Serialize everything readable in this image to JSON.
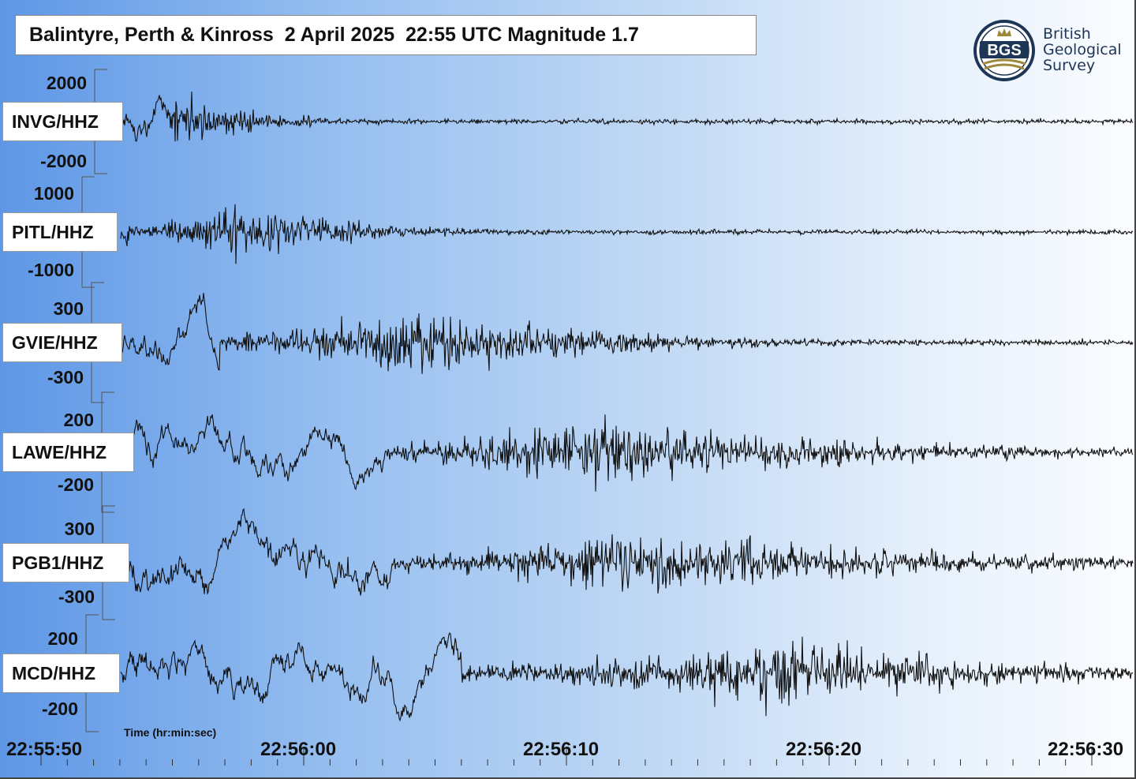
{
  "title": "Balintyre, Perth & Kinross  2 April 2025  22:55 UTC Magnitude 1.7",
  "logo": {
    "initials": "BGS",
    "lines": [
      "British",
      "Geological",
      "Survey"
    ],
    "icon": "bgs-crown-emblem-icon"
  },
  "colors": {
    "trace": "#111111",
    "text": "#111111",
    "logo_blue": "#1d3557",
    "logo_gold": "#9c8a3a"
  },
  "chart_data": {
    "type": "line",
    "xlabel": "Time (hr:min:sec)",
    "x_ticks": [
      "22:55:50",
      "22:56:00",
      "22:56:10",
      "22:56:20",
      "22:56:30"
    ],
    "x_range": [
      "22:55:50",
      "22:56:30"
    ],
    "grid": false,
    "series": [
      {
        "name": "INVG/HHZ",
        "scale_max": "2000",
        "scale_min": "-2000",
        "onset_s": 4.9,
        "peak_s": 5.1,
        "decay_s": 3.0,
        "noise": 0.1,
        "burst_amp": 0.95
      },
      {
        "name": "PITL/HHZ",
        "scale_max": "1000",
        "scale_min": "-1000",
        "onset_s": 3.3,
        "peak_s": 7.6,
        "decay_s": 4.0,
        "noise": 0.03,
        "burst_amp": 0.85
      },
      {
        "name": "GVIE/HHZ",
        "scale_max": "300",
        "scale_min": "-300",
        "onset_s": 6.8,
        "peak_s": 13.8,
        "decay_s": 7.0,
        "noise": 0.04,
        "burst_amp": 0.95
      },
      {
        "name": "LAWE/HHZ",
        "scale_max": "200",
        "scale_min": "-200",
        "onset_s": 13.3,
        "peak_s": 20.2,
        "decay_s": 10.0,
        "noise": 0.03,
        "burst_amp": 0.95
      },
      {
        "name": "PGB1/HHZ",
        "scale_max": "300",
        "scale_min": "-300",
        "onset_s": 13.4,
        "peak_s": 22.0,
        "decay_s": 12.0,
        "noise": 0.22,
        "burst_amp": 0.9
      },
      {
        "name": "MCD/HHZ",
        "scale_max": "200",
        "scale_min": "-200",
        "onset_s": 16.0,
        "peak_s": 27.5,
        "decay_s": 9.0,
        "noise": 0.13,
        "burst_amp": 0.95
      }
    ]
  }
}
